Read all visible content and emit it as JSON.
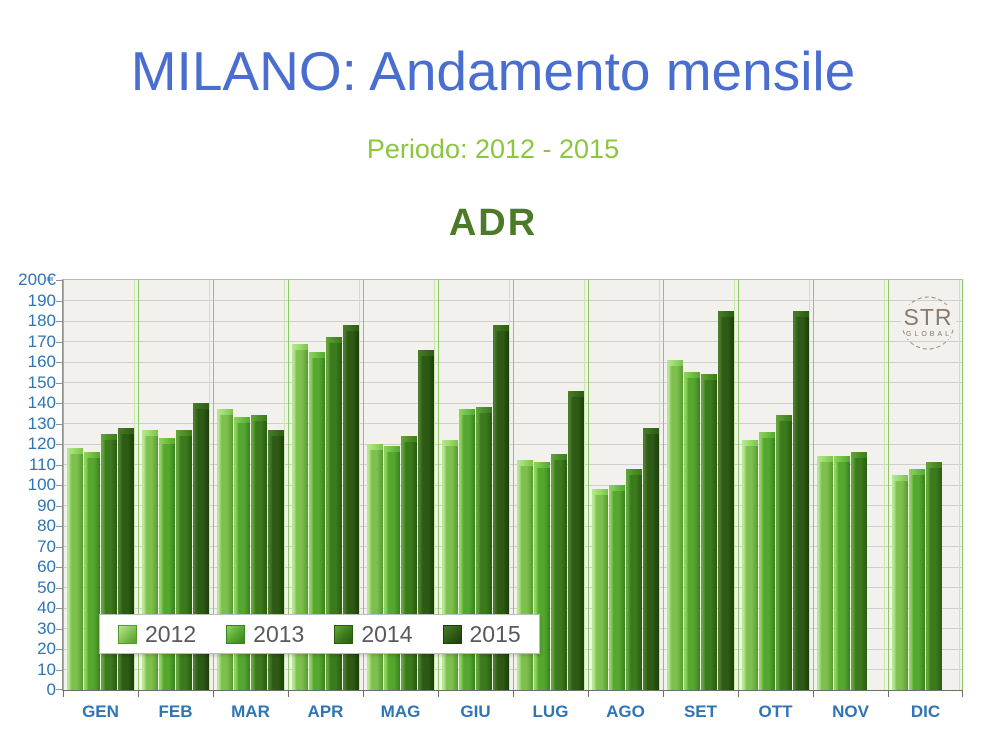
{
  "slide": {
    "title": "MILANO: Andamento mensile",
    "subtitle": "Periodo: 2012 - 2015",
    "chart_title": "ADR",
    "logo": {
      "text": "STR",
      "subtext": "GLOBAL"
    }
  },
  "colors": {
    "title": "#4a6ed0",
    "subtitle": "#8cc63e",
    "chart_title": "#4d7a28",
    "axis_label": "#2e75b6",
    "legend_text": "#595959",
    "plot_bg": "#f2f1ee",
    "grid_line": "#cfcfcd",
    "month_line": "#8fc767",
    "month_line_light": "#c9e6ad",
    "axis_line": "#6e6e6e",
    "tick_dash": "#909090",
    "logo_text": "#8a7a6c",
    "series_styles": [
      {
        "name": "2012",
        "light": "#b8e896",
        "base": "#7ec04e",
        "dark": "#569a2e",
        "cap": "#9cdc6a"
      },
      {
        "name": "2013",
        "light": "#8ed45e",
        "base": "#55a72f",
        "dark": "#3a821c",
        "cap": "#74c247"
      },
      {
        "name": "2014",
        "light": "#63a63c",
        "base": "#3c7a1e",
        "dark": "#285c10",
        "cap": "#4f9128"
      },
      {
        "name": "2015",
        "light": "#4a7c2a",
        "base": "#2d5a15",
        "dark": "#1c3f0a",
        "cap": "#3a6e1d"
      }
    ]
  },
  "chart_data": {
    "type": "bar",
    "title": "ADR",
    "currency_unit": "€",
    "categories": [
      "GEN",
      "FEB",
      "MAR",
      "APR",
      "MAG",
      "GIU",
      "LUG",
      "AGO",
      "SET",
      "OTT",
      "NOV",
      "DIC"
    ],
    "series": [
      {
        "name": "2012",
        "values": [
          118,
          127,
          137,
          169,
          120,
          122,
          112,
          98,
          161,
          122,
          114,
          105
        ]
      },
      {
        "name": "2013",
        "values": [
          116,
          123,
          133,
          165,
          119,
          137,
          111,
          100,
          155,
          126,
          114,
          108
        ]
      },
      {
        "name": "2014",
        "values": [
          125,
          127,
          134,
          172,
          124,
          138,
          115,
          108,
          154,
          134,
          116,
          111
        ]
      },
      {
        "name": "2015",
        "values": [
          128,
          140,
          127,
          178,
          166,
          178,
          146,
          128,
          185,
          185,
          null,
          null
        ]
      }
    ],
    "ylim": [
      0,
      200
    ],
    "ytick_step": 10,
    "ytop_label": "200€",
    "grid": true,
    "legend_position": "bottom-left-inside",
    "legend_entries": [
      "2012",
      "2013",
      "2014",
      "2015"
    ]
  }
}
